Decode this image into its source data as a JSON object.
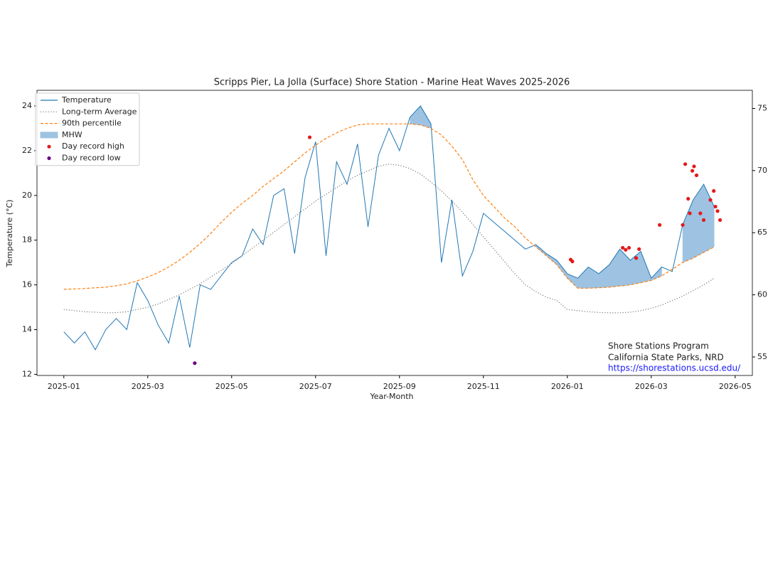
{
  "chart_data": {
    "type": "line",
    "title": "Scripps Pier, La Jolla (Surface) Shore Station - Marine Heat Waves 2025-2026",
    "xlabel": "Year-Month",
    "ylabel": "Temperature (°C)",
    "xlim": [
      -0.64,
      16.41
    ],
    "xticks": [
      {
        "value": 0,
        "label": "2025-01"
      },
      {
        "value": 2,
        "label": "2025-03"
      },
      {
        "value": 4,
        "label": "2025-05"
      },
      {
        "value": 6,
        "label": "2025-07"
      },
      {
        "value": 8,
        "label": "2025-09"
      },
      {
        "value": 10,
        "label": "2025-11"
      },
      {
        "value": 12,
        "label": "2026-01"
      },
      {
        "value": 14,
        "label": "2026-03"
      },
      {
        "value": 16,
        "label": "2026-05"
      }
    ],
    "ylim": [
      11.95,
      24.7
    ],
    "yticks": [
      12,
      14,
      16,
      18,
      20,
      22,
      24
    ],
    "y2lim": [
      53.51,
      76.46
    ],
    "y2ticks": [
      55,
      60,
      65,
      70,
      75
    ],
    "legend": "upper left",
    "x": [
      0,
      0.25,
      0.5,
      0.75,
      1,
      1.25,
      1.5,
      1.75,
      2,
      2.25,
      2.5,
      2.75,
      3,
      3.25,
      3.5,
      3.75,
      4,
      4.25,
      4.5,
      4.75,
      5,
      5.25,
      5.5,
      5.75,
      6,
      6.25,
      6.5,
      6.75,
      7,
      7.25,
      7.5,
      7.75,
      8,
      8.25,
      8.5,
      8.75,
      9,
      9.25,
      9.5,
      9.75,
      10,
      10.25,
      10.5,
      10.75,
      11,
      11.25,
      11.5,
      11.75,
      12,
      12.25,
      12.5,
      12.75,
      13,
      13.25,
      13.5,
      13.75,
      14,
      14.25,
      14.5,
      14.75,
      15,
      15.25,
      15.5
    ],
    "series": [
      {
        "name": "Temperature",
        "kind": "line",
        "style": "solid",
        "color": "#1f77b4",
        "values": [
          13.9,
          13.4,
          13.9,
          13.1,
          14.0,
          14.5,
          14.0,
          16.1,
          15.3,
          14.2,
          13.4,
          15.5,
          13.2,
          16.0,
          15.8,
          16.4,
          17.0,
          17.3,
          18.5,
          17.8,
          20.0,
          20.3,
          17.4,
          20.8,
          22.4,
          17.3,
          21.5,
          20.5,
          22.3,
          18.6,
          21.8,
          23.0,
          22.0,
          23.5,
          24.0,
          23.2,
          17.0,
          19.8,
          16.4,
          17.5,
          19.2,
          18.8,
          18.4,
          18.0,
          17.6,
          17.8,
          17.4,
          17.1,
          16.5,
          16.3,
          16.8,
          16.5,
          16.9,
          17.6,
          17.1,
          17.5,
          16.3,
          16.8,
          16.6,
          18.7,
          19.8,
          20.5,
          19.5
        ]
      },
      {
        "name": "Long-term Average",
        "kind": "line",
        "style": "dotted",
        "color": "#777777",
        "values": [
          14.9,
          14.85,
          14.8,
          14.78,
          14.75,
          14.76,
          14.8,
          14.9,
          15.0,
          15.15,
          15.35,
          15.55,
          15.8,
          16.05,
          16.35,
          16.65,
          16.95,
          17.3,
          17.65,
          18.0,
          18.35,
          18.7,
          19.05,
          19.4,
          19.75,
          20.05,
          20.35,
          20.65,
          20.9,
          21.1,
          21.3,
          21.4,
          21.35,
          21.2,
          20.95,
          20.6,
          20.2,
          19.75,
          19.25,
          18.7,
          18.15,
          17.6,
          17.05,
          16.5,
          16.0,
          15.7,
          15.45,
          15.3,
          14.9,
          14.85,
          14.8,
          14.77,
          14.75,
          14.75,
          14.78,
          14.85,
          14.95,
          15.1,
          15.3,
          15.5,
          15.75,
          16.0,
          16.3
        ]
      },
      {
        "name": "90th percentile",
        "kind": "line",
        "style": "dashed",
        "color": "#ff7f0e",
        "values": [
          15.8,
          15.82,
          15.84,
          15.87,
          15.9,
          15.96,
          16.05,
          16.18,
          16.35,
          16.55,
          16.8,
          17.1,
          17.45,
          17.85,
          18.3,
          18.8,
          19.25,
          19.65,
          20.0,
          20.4,
          20.75,
          21.1,
          21.5,
          21.9,
          22.25,
          22.55,
          22.8,
          23.0,
          23.15,
          23.2,
          23.2,
          23.2,
          23.2,
          23.2,
          23.15,
          23.0,
          22.7,
          22.2,
          21.6,
          20.7,
          20.0,
          19.5,
          19.0,
          18.6,
          18.1,
          17.7,
          17.3,
          16.9,
          16.3,
          15.85,
          15.85,
          15.87,
          15.9,
          15.95,
          16.0,
          16.1,
          16.2,
          16.4,
          16.7,
          17.0,
          17.2,
          17.45,
          17.7
        ]
      },
      {
        "name": "MHW",
        "kind": "fill",
        "color": "#9ec3e2",
        "between": [
          0,
          2
        ]
      },
      {
        "name": "Day record high",
        "kind": "scatter",
        "color": "#e31a1c",
        "x": [
          5.86,
          12.08,
          12.12,
          13.32,
          13.39,
          13.47,
          13.64,
          13.71,
          14.2,
          14.75,
          14.81,
          14.88,
          14.92,
          14.98,
          15.02,
          15.08,
          15.17,
          15.25,
          15.41,
          15.49,
          15.53,
          15.58,
          15.64
        ],
        "values": [
          22.6,
          17.13,
          17.05,
          17.66,
          17.57,
          17.66,
          17.2,
          17.6,
          18.68,
          18.68,
          21.4,
          19.85,
          19.2,
          21.1,
          21.3,
          20.9,
          19.2,
          18.9,
          19.8,
          20.2,
          19.5,
          19.3,
          18.9
        ]
      },
      {
        "name": "Day record low",
        "kind": "scatter",
        "color": "#6a0a80",
        "x": [
          3.12
        ],
        "values": [
          12.5
        ]
      }
    ],
    "footer": [
      "Shore Stations Program",
      "California State Parks, NRD"
    ],
    "url": "https://shorestations.ucsd.edu/"
  }
}
